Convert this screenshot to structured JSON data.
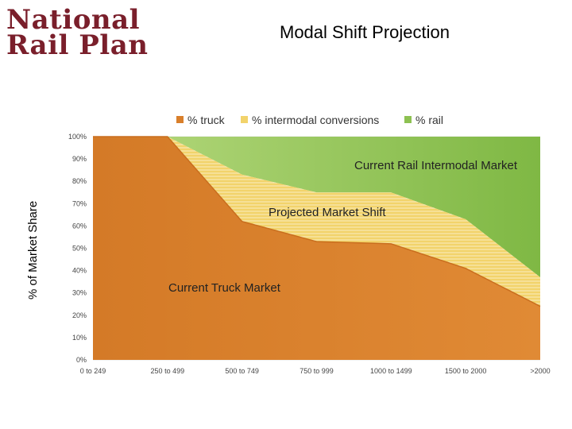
{
  "slide": {
    "title": "Modal Shift Projection",
    "logo_line1": "National",
    "logo_line2": "Rail Plan"
  },
  "colors": {
    "truck": "#d97f2b",
    "truck_dark": "#c96e1e",
    "intermodal": "#f2d36b",
    "rail": "#8dc152",
    "rail_light": "#b6d97e",
    "grid": "#e4e4e4",
    "logo": "#7a1f2b"
  },
  "chart_data": {
    "type": "area",
    "stacked": true,
    "title": "",
    "xlabel": "",
    "ylabel": "% of Market Share",
    "categories": [
      "0 to 249",
      "250 to 499",
      "500 to 749",
      "750 to 999",
      "1000 to 1499",
      "1500 to 2000",
      ">2000"
    ],
    "y_tick_labels": [
      "0%",
      "10%",
      "20%",
      "30%",
      "40%",
      "50%",
      "60%",
      "70%",
      "80%",
      "90%",
      "100%"
    ],
    "ylim": [
      0,
      100
    ],
    "legend_position": "top",
    "series": [
      {
        "name": "% truck",
        "values": [
          100,
          100,
          62,
          53,
          52,
          41,
          24
        ]
      },
      {
        "name": "% intermodal conversions",
        "values": [
          0,
          0,
          21,
          22,
          23,
          22,
          13
        ]
      },
      {
        "name": "% rail",
        "values": [
          0,
          0,
          17,
          25,
          25,
          37,
          63
        ]
      }
    ],
    "annotations": [
      {
        "text": "Current Rail Intermodal Market",
        "near": "top-right"
      },
      {
        "text": "Projected Market Shift",
        "near": "center"
      },
      {
        "text": "Current Truck Market",
        "near": "lower-left"
      }
    ]
  }
}
